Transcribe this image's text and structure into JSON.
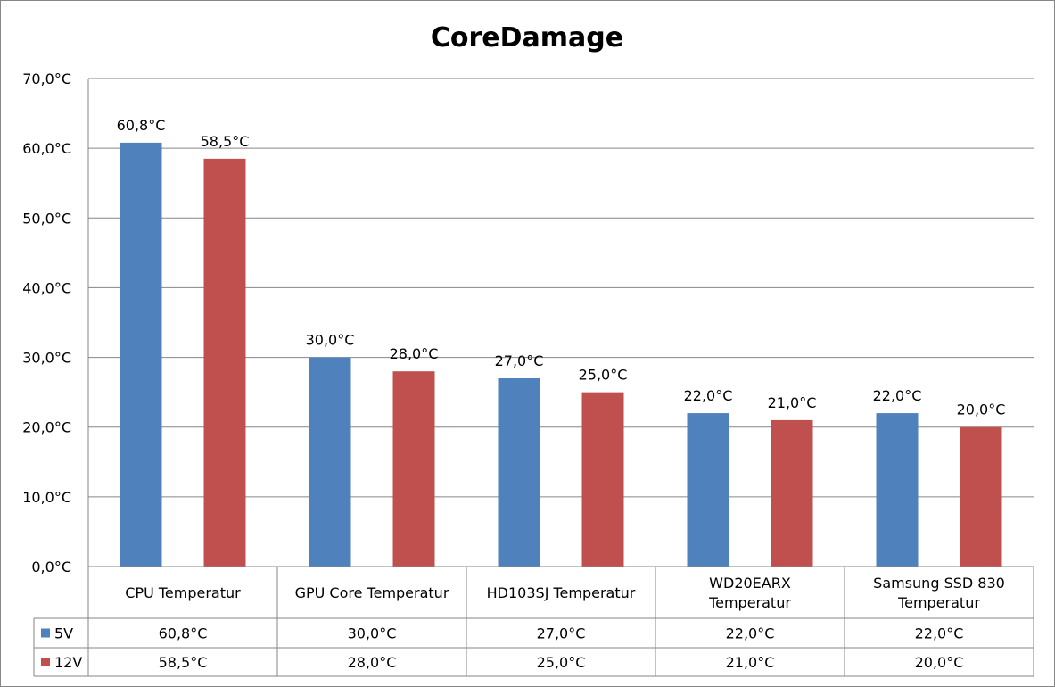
{
  "chart_data": {
    "type": "bar",
    "title": "CoreDamage",
    "categories": [
      [
        "CPU Temperatur"
      ],
      [
        "GPU Core Temperatur"
      ],
      [
        "HD103SJ Temperatur"
      ],
      [
        "WD20EARX",
        "Temperatur"
      ],
      [
        "Samsung SSD 830",
        "Temperatur"
      ]
    ],
    "series": [
      {
        "name": "5V",
        "color": "#4F81BD",
        "values": [
          60.8,
          30.0,
          27.0,
          22.0,
          22.0
        ],
        "labels": [
          "60,8°C",
          "30,0°C",
          "27,0°C",
          "22,0°C",
          "22,0°C"
        ]
      },
      {
        "name": "12V",
        "color": "#C0504D",
        "values": [
          58.5,
          28.0,
          25.0,
          21.0,
          20.0
        ],
        "labels": [
          "58,5°C",
          "28,0°C",
          "25,0°C",
          "21,0°C",
          "20,0°C"
        ]
      }
    ],
    "ylim": [
      0,
      70
    ],
    "y_ticks": [
      0,
      10,
      20,
      30,
      40,
      50,
      60,
      70
    ],
    "y_tick_labels": [
      "0,0°C",
      "10,0°C",
      "20,0°C",
      "30,0°C",
      "40,0°C",
      "50,0°C",
      "60,0°C",
      "70,0°C"
    ],
    "grid": true,
    "legend": "data-table"
  }
}
